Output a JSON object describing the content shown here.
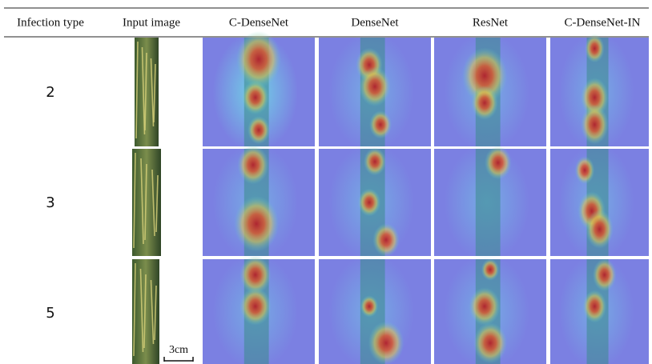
{
  "table": {
    "headers": [
      "Infection type",
      "Input image",
      "C-DenseNet",
      "DenseNet",
      "ResNet",
      "C-DenseNet-IN"
    ],
    "rows": [
      [
        "2"
      ],
      [
        "3"
      ],
      [
        "5"
      ]
    ]
  },
  "scale_bar": "3cm"
}
